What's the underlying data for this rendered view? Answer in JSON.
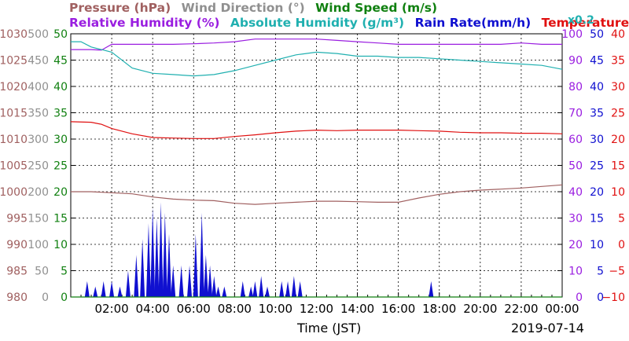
{
  "header": {
    "row1": [
      {
        "id": "pressure",
        "label": "Pressure (hPa)",
        "color": "#a06060"
      },
      {
        "id": "wind_direction",
        "label": "Wind Direction (°)",
        "color": "#909090"
      },
      {
        "id": "wind_speed",
        "label": "Wind Speed (m/s)",
        "color": "#108010"
      }
    ],
    "row2": [
      {
        "id": "relative_humidity",
        "label": "Relative Humidity (%)",
        "color": "#9a1ee0"
      },
      {
        "id": "absolute_humidity",
        "label": "Absolute Humidity (g/m³)",
        "color": "#20b0b0"
      },
      {
        "id": "rain_rate",
        "label": "Rain Rate(mm/h)",
        "color": "#1010d0"
      },
      {
        "id": "temperature",
        "label": "Temperature (°C)",
        "color": "#e01010"
      }
    ],
    "scale_note": "x0.2",
    "scale_note_color": "#20b0b0"
  },
  "chart_data": {
    "type": "line",
    "xlabel": "Time (JST)",
    "date": "2019-07-14",
    "x_ticks": [
      "02:00",
      "04:00",
      "06:00",
      "08:00",
      "10:00",
      "12:00",
      "14:00",
      "16:00",
      "18:00",
      "20:00",
      "22:00",
      "00:00"
    ],
    "x_range_hours": [
      0,
      24
    ],
    "axes": {
      "pressure": {
        "color": "#a06060",
        "ticks": [
          "1030",
          "1025",
          "1020",
          "1015",
          "1010",
          "1005",
          "1000",
          "995",
          "990",
          "985",
          "980"
        ],
        "range": [
          980,
          1030
        ]
      },
      "wind_direction": {
        "color": "#909090",
        "ticks": [
          "500",
          "450",
          "400",
          "350",
          "300",
          "250",
          "200",
          "150",
          "100",
          "50",
          "0"
        ],
        "range": [
          0,
          500
        ]
      },
      "wind_speed": {
        "color": "#108010",
        "ticks": [
          "50",
          "45",
          "40",
          "35",
          "30",
          "25",
          "20",
          "15",
          "10",
          "5",
          "0"
        ],
        "range": [
          0,
          50
        ]
      },
      "relative_humidity": {
        "color": "#9a1ee0",
        "ticks": [
          "100",
          "90",
          "80",
          "70",
          "60",
          "50",
          "40",
          "30",
          "20",
          "10",
          "0"
        ],
        "range": [
          0,
          100
        ]
      },
      "rain_rate": {
        "color": "#1010d0",
        "ticks": [
          "50",
          "45",
          "40",
          "35",
          "30",
          "25",
          "20",
          "15",
          "10",
          "5",
          "0"
        ],
        "range": [
          0,
          50
        ]
      },
      "temperature": {
        "color": "#e01010",
        "ticks": [
          "40",
          "35",
          "30",
          "25",
          "20",
          "15",
          "10",
          "5",
          "0",
          "−5",
          "−10"
        ],
        "range": [
          -10,
          40
        ]
      }
    },
    "series": [
      {
        "name": "Pressure (hPa)",
        "color": "#a06060",
        "x": [
          0,
          1,
          2,
          3,
          4,
          5,
          6,
          7,
          8,
          9,
          10,
          11,
          12,
          13,
          14,
          15,
          16,
          17,
          18,
          19,
          20,
          21,
          22,
          23,
          24
        ],
        "values": [
          1000,
          1000,
          999.8,
          999.6,
          999,
          998.6,
          998.4,
          998.3,
          997.8,
          997.6,
          997.8,
          998,
          998.2,
          998.2,
          998.1,
          998,
          998,
          998.8,
          999.5,
          1000,
          1000.3,
          1000.5,
          1000.7,
          1001,
          1001.3
        ]
      },
      {
        "name": "Temperature (°C)",
        "color": "#e01010",
        "x": [
          0,
          1,
          1.5,
          2,
          3,
          4,
          5,
          6,
          7,
          8,
          9,
          10,
          11,
          12,
          13,
          14,
          15,
          16,
          17,
          18,
          19,
          20,
          21,
          22,
          23,
          24
        ],
        "values": [
          23.3,
          23.2,
          22.8,
          22,
          21,
          20.3,
          20.2,
          20.1,
          20.1,
          20.5,
          20.8,
          21.2,
          21.5,
          21.7,
          21.6,
          21.7,
          21.7,
          21.7,
          21.6,
          21.5,
          21.3,
          21.2,
          21.2,
          21.1,
          21.1,
          21
        ]
      },
      {
        "name": "Relative Humidity (%)",
        "color": "#9a1ee0",
        "x": [
          0,
          1,
          1.5,
          2,
          3,
          4,
          5,
          6,
          7,
          8,
          9,
          10,
          11,
          12,
          13,
          14,
          15,
          16,
          17,
          18,
          19,
          20,
          21,
          22,
          23,
          24
        ],
        "values": [
          94,
          94,
          93.8,
          96,
          96,
          96,
          96,
          96.2,
          96.5,
          97,
          98,
          98,
          98,
          98,
          97.5,
          97,
          96.5,
          96,
          96,
          96,
          96,
          96,
          96,
          96.5,
          96,
          96
        ]
      },
      {
        "name": "Absolute Humidity (g/m³)",
        "color": "#20b0b0",
        "x": [
          0,
          0.5,
          1,
          1.5,
          2,
          3,
          4,
          5,
          6,
          7,
          8,
          9,
          10,
          11,
          12,
          13,
          14,
          15,
          16,
          17,
          18,
          19,
          20,
          21,
          22,
          23,
          24
        ],
        "values": [
          97,
          97,
          95,
          94,
          93,
          87,
          85,
          84.5,
          84,
          84.5,
          86,
          88,
          90,
          92,
          93,
          92.5,
          91.5,
          91.5,
          91,
          91,
          90.5,
          90,
          89.5,
          89,
          88.5,
          88,
          86.5
        ]
      },
      {
        "name": "Rain Rate(mm/h)",
        "color": "#1010d0",
        "x": [
          0.8,
          1.2,
          1.6,
          2.0,
          2.4,
          2.8,
          3.2,
          3.5,
          3.8,
          4.0,
          4.2,
          4.4,
          4.6,
          4.8,
          5.0,
          5.4,
          5.8,
          6.1,
          6.4,
          6.6,
          6.8,
          7.0,
          7.2,
          7.5,
          8.4,
          8.8,
          9.0,
          9.3,
          9.6,
          10.3,
          10.6,
          10.9,
          11.2,
          17.6
        ],
        "values": [
          3,
          2,
          3,
          3,
          2,
          5,
          8,
          11,
          14,
          17,
          15,
          18,
          16,
          12,
          6,
          6,
          6,
          12,
          16,
          8,
          6,
          4,
          2,
          2,
          3,
          2,
          3,
          4,
          2,
          3,
          3,
          4,
          3,
          3
        ]
      },
      {
        "name": "Wind Speed (m/s)",
        "color": "#108010",
        "x": [
          0,
          24
        ],
        "values": [
          0,
          0
        ]
      }
    ],
    "grid": true
  }
}
